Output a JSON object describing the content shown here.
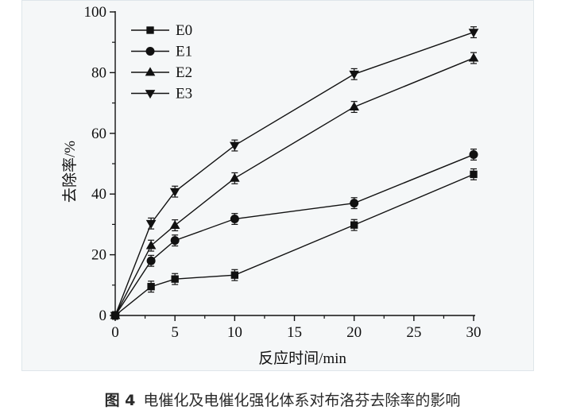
{
  "caption": {
    "figure_label": "图 4",
    "text": "电催化及电催化强化体系对布洛芬去除率的影响"
  },
  "colors": {
    "panel_bg": "#f5f7f8",
    "ink": "#111111"
  },
  "chart_data": {
    "type": "line",
    "title": "",
    "xlabel": "反应时间/min",
    "ylabel": "去除率/%",
    "xlim": [
      0,
      30
    ],
    "ylim": [
      0,
      100
    ],
    "xticks": [
      0,
      5,
      10,
      15,
      20,
      25,
      30
    ],
    "yticks": [
      0,
      20,
      40,
      60,
      80,
      100
    ],
    "grid": false,
    "legend_position": "top-left",
    "x": [
      0,
      3,
      5,
      10,
      20,
      30
    ],
    "series": [
      {
        "name": "E0",
        "marker": "square",
        "values": [
          0,
          9.5,
          12,
          13.3,
          29.8,
          46.5
        ],
        "errors": [
          1.2,
          1.8,
          1.8,
          1.8,
          1.8,
          1.8
        ]
      },
      {
        "name": "E1",
        "marker": "circle",
        "values": [
          0,
          18,
          24.7,
          31.8,
          37,
          53
        ],
        "errors": [
          1.2,
          1.8,
          1.8,
          1.8,
          1.8,
          1.8
        ]
      },
      {
        "name": "E2",
        "marker": "triangle-up",
        "values": [
          0,
          23,
          29.7,
          45.2,
          68.7,
          84.8
        ],
        "errors": [
          1.2,
          1.8,
          1.8,
          1.8,
          1.8,
          1.8
        ]
      },
      {
        "name": "E3",
        "marker": "triangle-down",
        "values": [
          0,
          30.3,
          40.8,
          56,
          79.5,
          93.3
        ],
        "errors": [
          1.2,
          1.8,
          1.8,
          1.8,
          1.8,
          1.8
        ]
      }
    ]
  }
}
